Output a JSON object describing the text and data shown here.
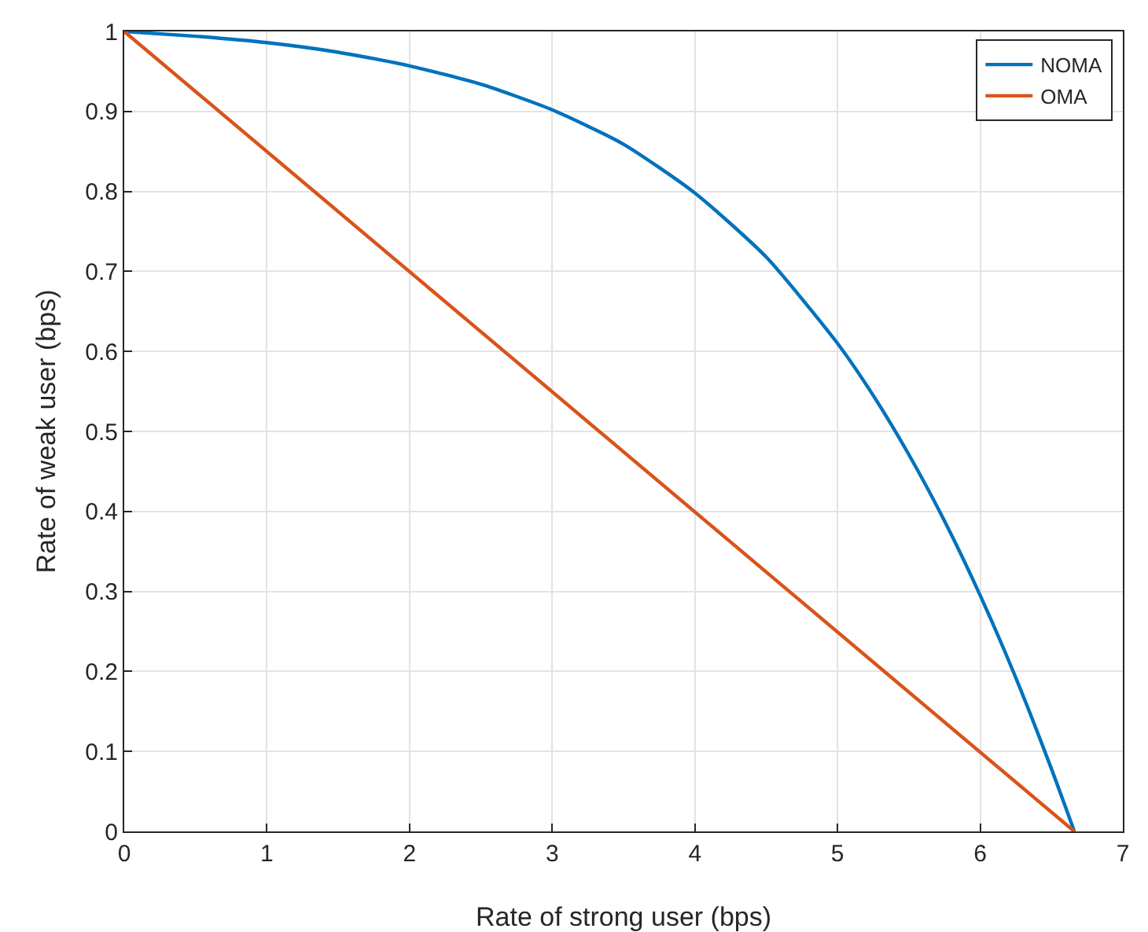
{
  "chart_data": {
    "type": "line",
    "xlabel": "Rate of strong user (bps)",
    "ylabel": "Rate of weak user (bps)",
    "xlim": [
      0,
      7
    ],
    "xticks": [
      0,
      1,
      2,
      3,
      4,
      5,
      6,
      7
    ],
    "ylim": [
      0,
      1
    ],
    "yticks": [
      0,
      0.1,
      0.2,
      0.3,
      0.4,
      0.5,
      0.6,
      0.7,
      0.8,
      0.9,
      1
    ],
    "grid": true,
    "legend": "top right",
    "marker": "none",
    "line_style": "solid",
    "series": [
      {
        "name": "NOMA",
        "color": "#0072bd",
        "x": [
          0,
          0.5,
          1,
          1.5,
          2,
          2.5,
          3,
          3.5,
          4,
          4.5,
          5,
          5.25,
          5.5,
          5.75,
          6,
          6.25,
          6.5,
          6.66
        ],
        "values": [
          1,
          0.994,
          0.986,
          0.974,
          0.957,
          0.934,
          0.902,
          0.859,
          0.798,
          0.718,
          0.61,
          0.545,
          0.471,
          0.388,
          0.295,
          0.192,
          0.078,
          0
        ]
      },
      {
        "name": "OMA",
        "color": "#d95319",
        "x": [
          0,
          6.66
        ],
        "values": [
          1,
          0
        ]
      }
    ]
  }
}
